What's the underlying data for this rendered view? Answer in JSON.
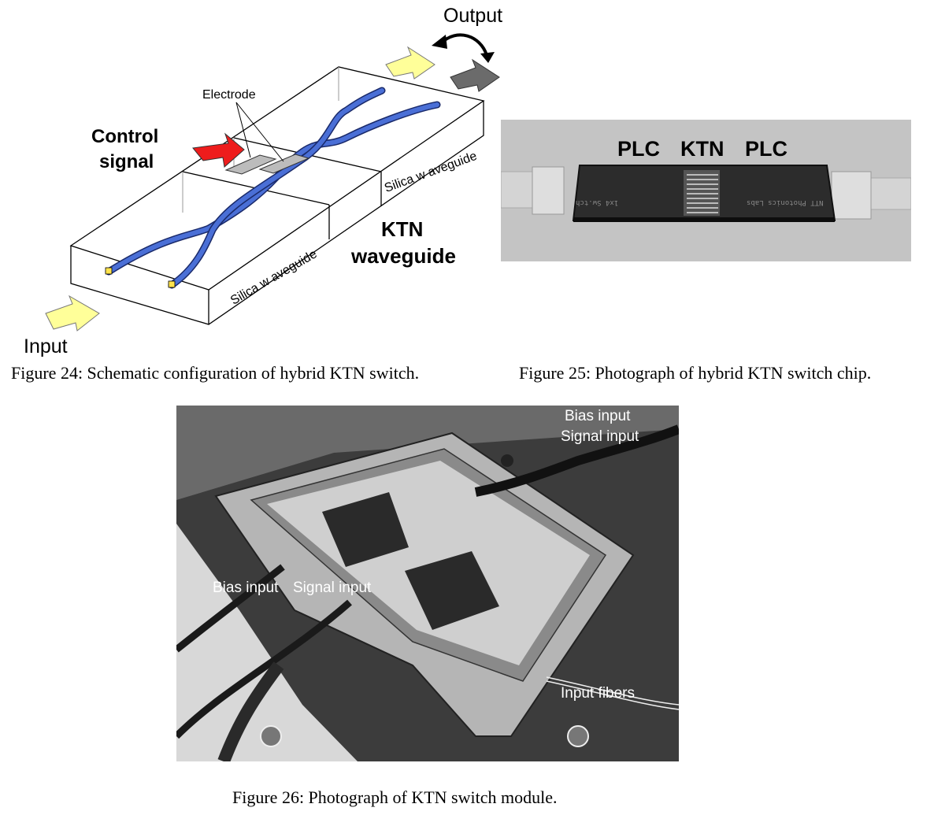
{
  "figure24": {
    "caption": "Figure 24: Schematic configuration of hybrid KTN switch.",
    "labels": {
      "output": "Output",
      "electrode": "Electrode",
      "control_line1": "Control",
      "control_line2": "signal",
      "silica_waveguide_top": "Silica w aveguide",
      "ktn_line1": "KTN",
      "ktn_line2": "waveguide",
      "silica_waveguide_front": "Silica w aveguide",
      "input": "Input"
    },
    "colors": {
      "waveguide": "#4a6fd6",
      "control_arrow": "#ee1c1c",
      "io_arrow": "#ffff99",
      "output_dark_arrow": "#6b6b6b",
      "electrode": "#bcbcbc"
    }
  },
  "figure25": {
    "caption": "Figure 25: Photograph of hybrid KTN switch chip.",
    "labels": {
      "plc_left": "PLC",
      "ktn": "KTN",
      "plc_right": "PLC",
      "chip_text_left": "1x4 Sw.tch",
      "chip_text_right": "NTT Photonics Labs"
    }
  },
  "figure26": {
    "caption": "Figure 26: Photograph of KTN switch module.",
    "labels": {
      "bias_input_top": "Bias input",
      "signal_input_top": "Signal input",
      "bias_input_mid": "Bias input",
      "signal_input_mid": "Signal input",
      "input_fibers": "Input fibers"
    }
  }
}
